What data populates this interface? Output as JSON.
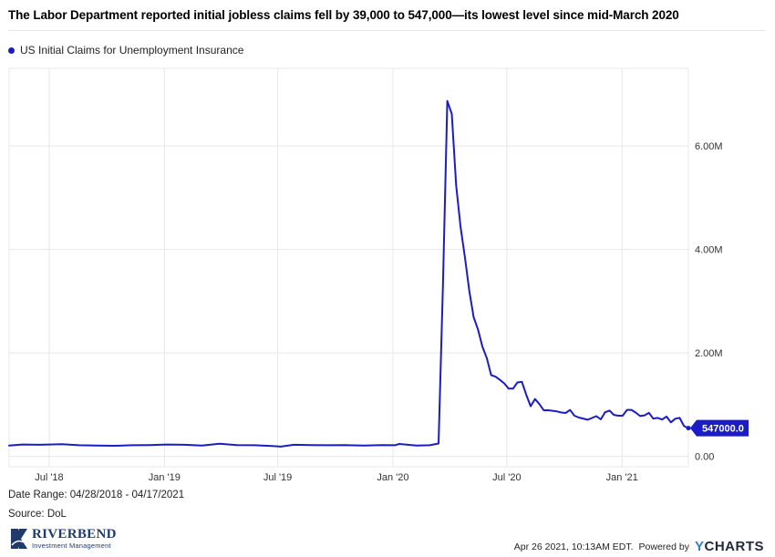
{
  "title": "The Labor Department reported initial jobless claims fell by 39,000 to 547,000—its lowest level since mid-March 2020",
  "legend_label": "US Initial Claims for Unemployment Insurance",
  "footer": {
    "date_range": "Date Range: 04/28/2018 - 04/17/2021",
    "source": "Source: DoL",
    "timestamp": "Apr 26 2021, 10:13AM EDT.",
    "powered_by": "Powered by",
    "brand_y": "Y",
    "brand_rest": "CHARTS",
    "logo_name": "RIVERBEND",
    "logo_sub": "Investment Management"
  },
  "colors": {
    "series": "#1c1cc4",
    "grid": "#e8e8e8",
    "axis_text": "#333333",
    "logo": "#1f3a6b"
  },
  "chart_data": {
    "type": "line",
    "title": "The Labor Department reported initial jobless claims fell by 39,000 to 547,000—its lowest level since mid-March 2020",
    "x_range": [
      "2018-04-28",
      "2021-04-17"
    ],
    "ylim": [
      -200000,
      7500000
    ],
    "y_ticks": [
      0,
      2000000,
      4000000,
      6000000
    ],
    "y_tick_labels": [
      "0.00",
      "2.00M",
      "4.00M",
      "6.00M"
    ],
    "x_ticks": [
      "2018-07-01",
      "2019-01-01",
      "2019-07-01",
      "2020-01-01",
      "2020-07-01",
      "2021-01-01"
    ],
    "x_tick_labels": [
      "Jul '18",
      "Jan '19",
      "Jul '19",
      "Jan '20",
      "Jul '20",
      "Jan '21"
    ],
    "grid": true,
    "legend": "top-left",
    "last_value_label": "547000.0",
    "series": [
      {
        "name": "US Initial Claims for Unemployment Insurance",
        "points": [
          [
            "2018-04-28",
            210000
          ],
          [
            "2018-05-19",
            230000
          ],
          [
            "2018-06-16",
            225000
          ],
          [
            "2018-07-21",
            235000
          ],
          [
            "2018-08-18",
            215000
          ],
          [
            "2018-09-15",
            210000
          ],
          [
            "2018-10-13",
            205000
          ],
          [
            "2018-11-10",
            215000
          ],
          [
            "2018-12-08",
            220000
          ],
          [
            "2019-01-05",
            230000
          ],
          [
            "2019-02-02",
            225000
          ],
          [
            "2019-03-02",
            210000
          ],
          [
            "2019-03-30",
            245000
          ],
          [
            "2019-04-27",
            220000
          ],
          [
            "2019-05-25",
            215000
          ],
          [
            "2019-06-22",
            200000
          ],
          [
            "2019-07-06",
            190000
          ],
          [
            "2019-07-27",
            225000
          ],
          [
            "2019-08-24",
            220000
          ],
          [
            "2019-09-21",
            215000
          ],
          [
            "2019-10-19",
            218000
          ],
          [
            "2019-11-16",
            210000
          ],
          [
            "2019-12-14",
            220000
          ],
          [
            "2020-01-04",
            215000
          ],
          [
            "2020-01-11",
            240000
          ],
          [
            "2020-02-08",
            210000
          ],
          [
            "2020-02-29",
            215000
          ],
          [
            "2020-03-14",
            250000
          ],
          [
            "2020-03-21",
            3300000
          ],
          [
            "2020-03-28",
            6870000
          ],
          [
            "2020-04-04",
            6620000
          ],
          [
            "2020-04-11",
            5240000
          ],
          [
            "2020-04-18",
            4440000
          ],
          [
            "2020-04-25",
            3850000
          ],
          [
            "2020-05-02",
            3200000
          ],
          [
            "2020-05-09",
            2690000
          ],
          [
            "2020-05-16",
            2450000
          ],
          [
            "2020-05-23",
            2120000
          ],
          [
            "2020-05-30",
            1900000
          ],
          [
            "2020-06-06",
            1570000
          ],
          [
            "2020-06-13",
            1540000
          ],
          [
            "2020-06-20",
            1480000
          ],
          [
            "2020-06-27",
            1410000
          ],
          [
            "2020-07-04",
            1310000
          ],
          [
            "2020-07-11",
            1310000
          ],
          [
            "2020-07-18",
            1430000
          ],
          [
            "2020-07-25",
            1440000
          ],
          [
            "2020-08-01",
            1190000
          ],
          [
            "2020-08-08",
            970000
          ],
          [
            "2020-08-15",
            1110000
          ],
          [
            "2020-08-22",
            1010000
          ],
          [
            "2020-08-29",
            890000
          ],
          [
            "2020-09-05",
            893000
          ],
          [
            "2020-09-19",
            870000
          ],
          [
            "2020-09-26",
            849000
          ],
          [
            "2020-10-03",
            840000
          ],
          [
            "2020-10-10",
            898000
          ],
          [
            "2020-10-17",
            787000
          ],
          [
            "2020-10-24",
            751000
          ],
          [
            "2020-11-07",
            709000
          ],
          [
            "2020-11-14",
            742000
          ],
          [
            "2020-11-21",
            778000
          ],
          [
            "2020-11-28",
            716000
          ],
          [
            "2020-12-05",
            853000
          ],
          [
            "2020-12-12",
            885000
          ],
          [
            "2020-12-19",
            803000
          ],
          [
            "2020-12-26",
            787000
          ],
          [
            "2021-01-02",
            787000
          ],
          [
            "2021-01-09",
            900000
          ],
          [
            "2021-01-16",
            900000
          ],
          [
            "2021-01-23",
            847000
          ],
          [
            "2021-01-30",
            779000
          ],
          [
            "2021-02-06",
            793000
          ],
          [
            "2021-02-13",
            841000
          ],
          [
            "2021-02-20",
            730000
          ],
          [
            "2021-02-27",
            745000
          ],
          [
            "2021-03-06",
            712000
          ],
          [
            "2021-03-13",
            770000
          ],
          [
            "2021-03-20",
            658000
          ],
          [
            "2021-03-27",
            728000
          ],
          [
            "2021-04-03",
            744000
          ],
          [
            "2021-04-10",
            586000
          ],
          [
            "2021-04-17",
            547000
          ]
        ]
      }
    ]
  }
}
